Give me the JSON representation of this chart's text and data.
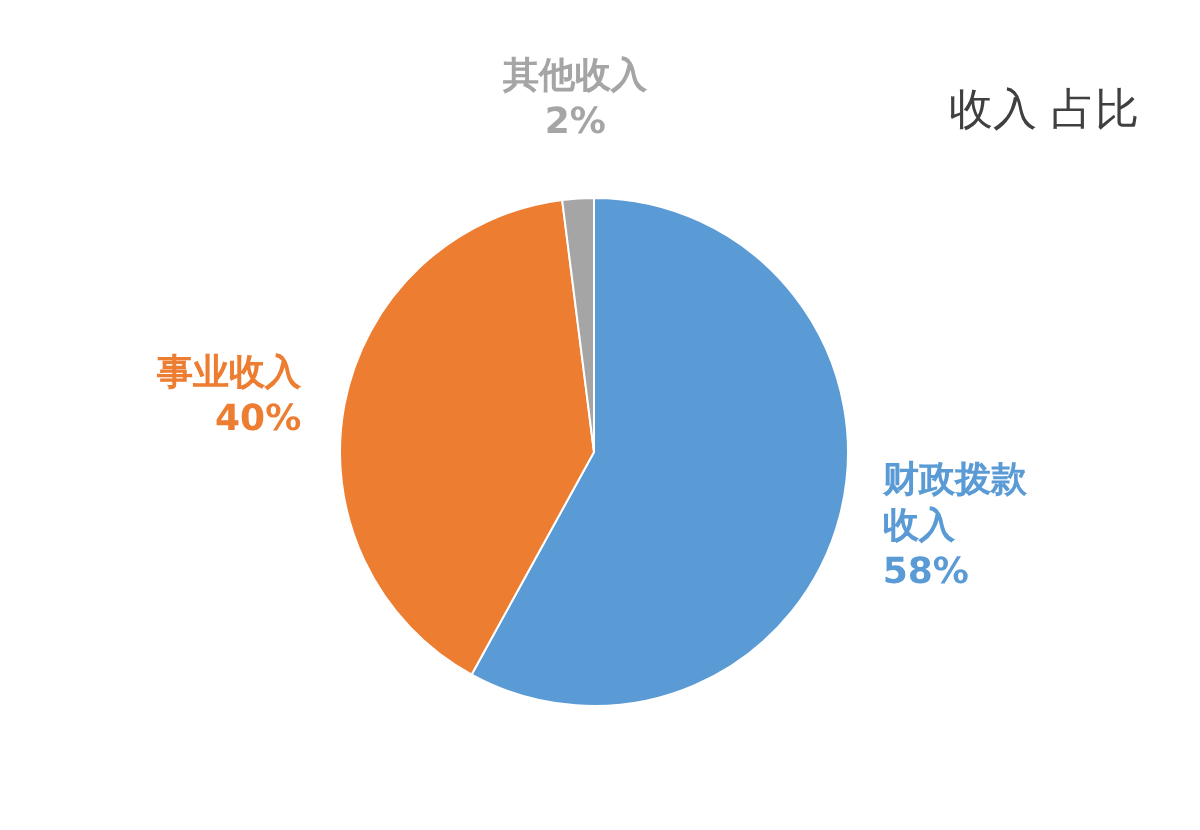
{
  "chart_data": {
    "type": "pie",
    "title": "收入 占比",
    "categories": [
      "财政拨款收入",
      "事业收入",
      "其他收入"
    ],
    "values": [
      58,
      40,
      2
    ],
    "colors": [
      "#5b9bd5",
      "#ed7d31",
      "#a5a5a5"
    ],
    "value_labels": [
      "58%",
      "40%",
      "2%"
    ]
  }
}
